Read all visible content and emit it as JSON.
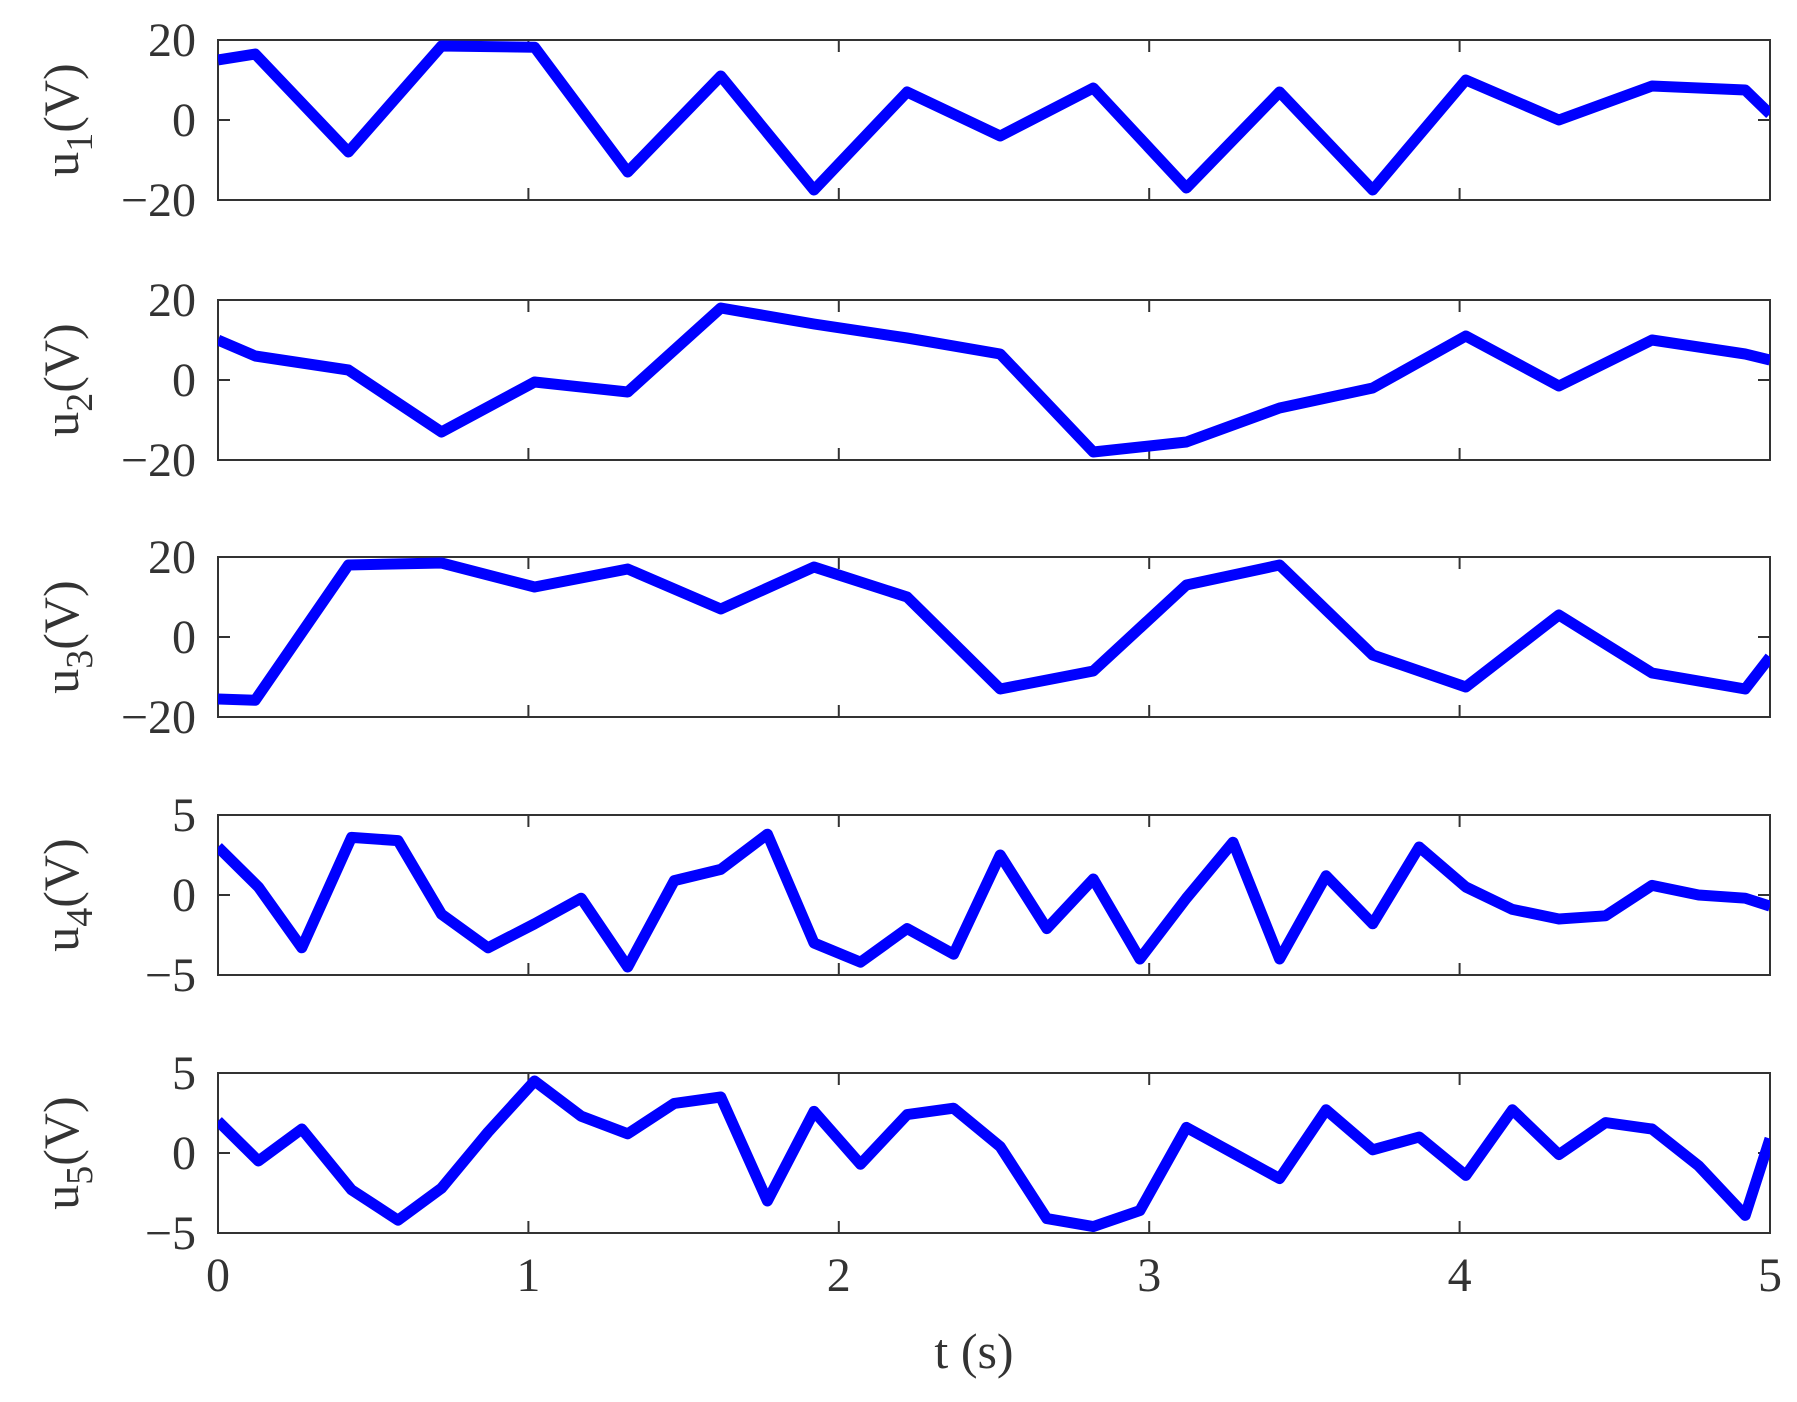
{
  "chart_data": [
    {
      "type": "line",
      "ylabel": {
        "base": "u",
        "sub": "1",
        "unit": "(V)"
      },
      "xlim": [
        0,
        5
      ],
      "ylim": [
        -20,
        20
      ],
      "yticks": [
        -20,
        0,
        20
      ],
      "yticklabels": [
        "−20",
        "0",
        "20"
      ],
      "xticks": [
        0,
        1,
        2,
        3,
        4,
        5
      ],
      "color": "#0000ff",
      "x": [
        0,
        0.12,
        0.42,
        0.72,
        1.02,
        1.32,
        1.62,
        1.92,
        2.22,
        2.52,
        2.82,
        3.12,
        3.42,
        3.72,
        4.02,
        4.32,
        4.62,
        4.92,
        5.0
      ],
      "y": [
        15,
        16.5,
        -8,
        18.5,
        18.2,
        -13,
        11,
        -17.5,
        7,
        -4,
        8,
        -17,
        7,
        -17.5,
        10,
        0,
        8.5,
        7.5,
        1.5
      ]
    },
    {
      "type": "line",
      "ylabel": {
        "base": "u",
        "sub": "2",
        "unit": "(V)"
      },
      "xlim": [
        0,
        5
      ],
      "ylim": [
        -20,
        20
      ],
      "yticks": [
        -20,
        0,
        20
      ],
      "yticklabels": [
        "−20",
        "0",
        "20"
      ],
      "xticks": [
        0,
        1,
        2,
        3,
        4,
        5
      ],
      "color": "#0000ff",
      "x": [
        0,
        0.12,
        0.42,
        0.72,
        1.02,
        1.32,
        1.62,
        1.92,
        2.22,
        2.52,
        2.82,
        3.12,
        3.42,
        3.72,
        4.02,
        4.32,
        4.62,
        4.92,
        5.0
      ],
      "y": [
        10,
        6,
        2.5,
        -13,
        -0.5,
        -3,
        18,
        14,
        10.5,
        6.5,
        -18,
        -15.5,
        -7,
        -2,
        11,
        -1.5,
        10,
        6.5,
        5
      ]
    },
    {
      "type": "line",
      "ylabel": {
        "base": "u",
        "sub": "3",
        "unit": "(V)"
      },
      "xlim": [
        0,
        5
      ],
      "ylim": [
        -20,
        20
      ],
      "yticks": [
        -20,
        0,
        20
      ],
      "yticklabels": [
        "−20",
        "0",
        "20"
      ],
      "xticks": [
        0,
        1,
        2,
        3,
        4,
        5
      ],
      "color": "#0000ff",
      "x": [
        0,
        0.12,
        0.42,
        0.72,
        1.02,
        1.32,
        1.62,
        1.92,
        2.22,
        2.52,
        2.82,
        3.12,
        3.42,
        3.72,
        4.02,
        4.32,
        4.62,
        4.92,
        5.0
      ],
      "y": [
        -15.5,
        -15.8,
        18,
        18.5,
        12.5,
        17,
        7,
        17.5,
        10,
        -13,
        -8.5,
        13,
        18,
        -4.5,
        -12.5,
        5.5,
        -9,
        -13,
        -5
      ]
    },
    {
      "type": "line",
      "ylabel": {
        "base": "u",
        "sub": "4",
        "unit": "(V)"
      },
      "xlim": [
        0,
        5
      ],
      "ylim": [
        -5,
        5
      ],
      "yticks": [
        -5,
        0,
        5
      ],
      "yticklabels": [
        "−5",
        "0",
        "5"
      ],
      "xticks": [
        0,
        1,
        2,
        3,
        4,
        5
      ],
      "color": "#0000ff",
      "x": [
        0,
        0.13,
        0.27,
        0.43,
        0.58,
        0.72,
        0.87,
        1.02,
        1.17,
        1.32,
        1.47,
        1.62,
        1.77,
        1.92,
        2.07,
        2.22,
        2.37,
        2.52,
        2.67,
        2.82,
        2.97,
        3.12,
        3.27,
        3.42,
        3.57,
        3.72,
        3.87,
        4.02,
        4.17,
        4.32,
        4.47,
        4.62,
        4.77,
        4.92,
        5.0
      ],
      "y": [
        3,
        0.5,
        -3.3,
        3.6,
        3.4,
        -1.2,
        -3.3,
        -1.8,
        -0.2,
        -4.5,
        0.9,
        1.6,
        3.8,
        -3,
        -4.2,
        -2.1,
        -3.7,
        2.5,
        -2.1,
        1,
        -4,
        -0.2,
        3.3,
        -4,
        1.2,
        -1.8,
        3,
        0.5,
        -0.9,
        -1.5,
        -1.3,
        0.6,
        0,
        -0.2,
        -0.7
      ]
    },
    {
      "type": "line",
      "ylabel": {
        "base": "u",
        "sub": "5",
        "unit": "(V)"
      },
      "xlim": [
        0,
        5
      ],
      "ylim": [
        -5,
        5
      ],
      "yticks": [
        -5,
        0,
        5
      ],
      "yticklabels": [
        "−5",
        "0",
        "5"
      ],
      "xticks": [
        0,
        1,
        2,
        3,
        4,
        5
      ],
      "xticklabels": [
        "0",
        "1",
        "2",
        "3",
        "4",
        "5"
      ],
      "xlabel": "t (s)",
      "color": "#0000ff",
      "x": [
        0,
        0.13,
        0.27,
        0.43,
        0.58,
        0.72,
        0.87,
        1.02,
        1.17,
        1.32,
        1.47,
        1.62,
        1.77,
        1.92,
        2.07,
        2.22,
        2.37,
        2.52,
        2.67,
        2.82,
        2.97,
        3.12,
        3.27,
        3.42,
        3.57,
        3.72,
        3.87,
        4.02,
        4.17,
        4.32,
        4.47,
        4.62,
        4.77,
        4.92,
        5.0
      ],
      "y": [
        2,
        -0.5,
        1.5,
        -2.3,
        -4.2,
        -2.2,
        1.3,
        4.5,
        2.3,
        1.2,
        3.1,
        3.5,
        -3,
        2.6,
        -0.7,
        2.4,
        2.8,
        0.4,
        -4.1,
        -4.6,
        -3.6,
        1.6,
        0,
        -1.6,
        2.7,
        0.2,
        1,
        -1.4,
        2.7,
        -0.1,
        1.9,
        1.5,
        -0.8,
        -3.9,
        0.9
      ]
    }
  ]
}
